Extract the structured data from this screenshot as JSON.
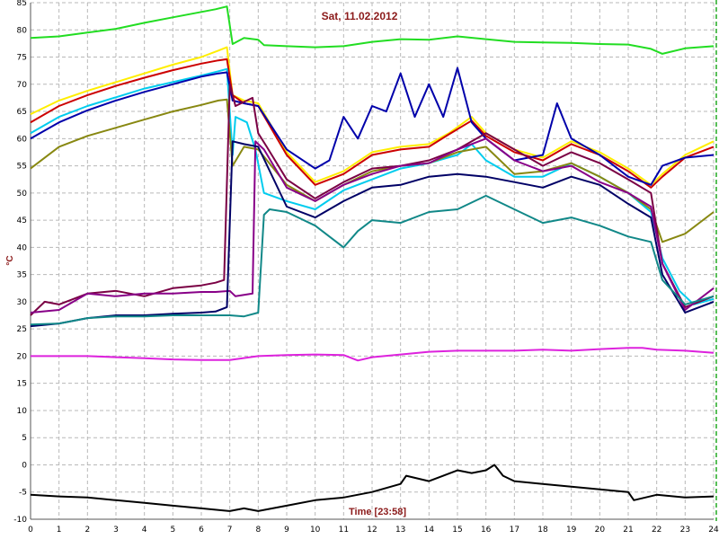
{
  "chart_data": {
    "type": "line",
    "title": "Sat, 11.02.2012",
    "xlabel": "Time [23:58]",
    "ylabel": "°C",
    "xlim": [
      0,
      24
    ],
    "ylim": [
      -10,
      85
    ],
    "xticks": [
      0,
      1,
      2,
      3,
      4,
      5,
      6,
      7,
      8,
      9,
      10,
      11,
      12,
      13,
      14,
      15,
      16,
      17,
      18,
      19,
      20,
      21,
      22,
      23,
      24
    ],
    "yticks": [
      -10,
      -5,
      0,
      5,
      10,
      15,
      20,
      25,
      30,
      35,
      40,
      45,
      50,
      55,
      60,
      65,
      70,
      75,
      80,
      85
    ],
    "grid": true,
    "series": [
      {
        "color": "#22dd22",
        "x": [
          0,
          1,
          2,
          3,
          4,
          5,
          6,
          6.5,
          6.9,
          7.1,
          7.5,
          8,
          8.2,
          9,
          10,
          11,
          12,
          13,
          14,
          15,
          16,
          17,
          18,
          19,
          20,
          21,
          21.8,
          22.2,
          23,
          24
        ],
        "y": [
          78.5,
          78.8,
          79.5,
          80.2,
          81.3,
          82.3,
          83.3,
          83.8,
          84.3,
          77.4,
          78.5,
          78.2,
          77.2,
          77.0,
          76.8,
          77.0,
          77.8,
          78.3,
          78.2,
          78.8,
          78.3,
          77.8,
          77.7,
          77.6,
          77.4,
          77.3,
          76.5,
          75.6,
          76.6,
          77.0
        ]
      },
      {
        "color": "#ffee00",
        "x": [
          0,
          1,
          2,
          3,
          4,
          5,
          6,
          6.6,
          6.9,
          7.1,
          7.5,
          8,
          9,
          10,
          11,
          12,
          13,
          14,
          14.7,
          15.5,
          16,
          17,
          18,
          19,
          20,
          21,
          21.8,
          22.2,
          23,
          24
        ],
        "y": [
          64.5,
          67.0,
          68.8,
          70.4,
          72.0,
          73.6,
          75.0,
          76.2,
          76.8,
          68.0,
          67.0,
          66.5,
          57.5,
          52.0,
          54.0,
          57.5,
          58.5,
          59.0,
          61.0,
          64.0,
          61.0,
          58.0,
          56.5,
          59.5,
          57.5,
          54.5,
          51.5,
          53.5,
          57.0,
          59.5
        ]
      },
      {
        "color": "#cc0000",
        "x": [
          0,
          1,
          2,
          3,
          4,
          5,
          6,
          6.6,
          6.9,
          7.1,
          7.5,
          8,
          9,
          10,
          11,
          12,
          13,
          14,
          14.7,
          15.5,
          16,
          17,
          18,
          19,
          20,
          21,
          21.8,
          22.2,
          23,
          24
        ],
        "y": [
          63.0,
          66.0,
          68.0,
          69.7,
          71.2,
          72.6,
          73.8,
          74.4,
          74.6,
          68.0,
          66.5,
          66.0,
          57.0,
          51.5,
          53.5,
          57.0,
          58.0,
          58.5,
          60.8,
          63.3,
          60.5,
          57.5,
          56.0,
          59.0,
          57.0,
          54.0,
          51.0,
          53.0,
          56.5,
          58.5
        ]
      },
      {
        "color": "#00ccee",
        "x": [
          0,
          1,
          2,
          3,
          4,
          5,
          6,
          6.6,
          6.9,
          7.1,
          7.2,
          7.6,
          7.9,
          8.2,
          9,
          10,
          11,
          12,
          13,
          14,
          15,
          15.5,
          16,
          17,
          18,
          19,
          20,
          21,
          21.8,
          22.2,
          22.8,
          23.3,
          24
        ],
        "y": [
          61.0,
          64.0,
          66.0,
          67.6,
          69.2,
          70.4,
          71.6,
          72.4,
          72.8,
          57.0,
          64.0,
          63.0,
          58.0,
          50.0,
          48.5,
          47.0,
          50.5,
          52.5,
          54.5,
          55.5,
          57.0,
          59.0,
          56.0,
          53.0,
          53.0,
          55.5,
          53.0,
          50.0,
          46.5,
          38.0,
          32.0,
          29.5,
          30.5
        ]
      },
      {
        "color": "#0000aa",
        "x": [
          0,
          1,
          2,
          3,
          4,
          5,
          6,
          6.6,
          6.9,
          7.1,
          7.5,
          8,
          9,
          10,
          10.5,
          11,
          11.5,
          12,
          12.5,
          13,
          13.5,
          14,
          14.5,
          15,
          15.5,
          16,
          16.5,
          17,
          18,
          18.5,
          19,
          20,
          21,
          21.8,
          22.2,
          23,
          24
        ],
        "y": [
          60.0,
          63.0,
          65.2,
          67.0,
          68.6,
          70.0,
          71.4,
          72.0,
          72.2,
          67.0,
          66.5,
          66.0,
          58.0,
          54.5,
          56.0,
          64.0,
          60.0,
          66.0,
          65.0,
          72.0,
          64.0,
          70.0,
          64.0,
          73.0,
          63.0,
          60.0,
          58.0,
          56.0,
          57.0,
          66.5,
          60.0,
          57.0,
          53.0,
          51.5,
          55.0,
          56.5,
          57.0
        ]
      },
      {
        "color": "#888811",
        "x": [
          0,
          1,
          2,
          3,
          4,
          5,
          6,
          6.6,
          6.9,
          7.1,
          7.5,
          8,
          9,
          10,
          11,
          12,
          13,
          14,
          15,
          16,
          17,
          18,
          19,
          20,
          21,
          21.8,
          22.2,
          23,
          24
        ],
        "y": [
          54.5,
          58.5,
          60.5,
          62.0,
          63.5,
          65.0,
          66.2,
          67.0,
          67.2,
          55.0,
          58.5,
          58.0,
          51.5,
          48.5,
          51.5,
          54.0,
          55.0,
          55.5,
          57.5,
          58.5,
          53.5,
          54.0,
          55.5,
          53.0,
          50.0,
          47.0,
          41.0,
          42.5,
          46.5
        ]
      },
      {
        "color": "#7a0044",
        "x": [
          0,
          0.5,
          1,
          2,
          3,
          4,
          5,
          6,
          6.5,
          6.8,
          7.0,
          7.2,
          7.8,
          8.0,
          8.3,
          9,
          10,
          11,
          12,
          13,
          14,
          15,
          16,
          17,
          18,
          19,
          20,
          21,
          21.8,
          22.2,
          23,
          24
        ],
        "y": [
          27.5,
          30.0,
          29.5,
          31.5,
          32.0,
          31.0,
          32.5,
          33.0,
          33.5,
          34.0,
          70.0,
          66.0,
          67.5,
          61.0,
          58.5,
          52.5,
          49.0,
          52.0,
          54.5,
          55.0,
          56.0,
          58.0,
          61.0,
          58.0,
          55.0,
          57.5,
          55.5,
          52.5,
          50.0,
          37.0,
          29.0,
          31.0
        ]
      },
      {
        "color": "#880088",
        "x": [
          0,
          1,
          2,
          3,
          4,
          5,
          6,
          6.5,
          7.0,
          7.2,
          7.8,
          7.9,
          8.0,
          8.2,
          9,
          10,
          11,
          12,
          13,
          14,
          15,
          16,
          17,
          18,
          19,
          20,
          21,
          21.8,
          22.2,
          23,
          24
        ],
        "y": [
          28.0,
          28.5,
          31.5,
          31.0,
          31.5,
          31.5,
          31.8,
          31.8,
          32.0,
          31.0,
          31.5,
          59.5,
          59.0,
          58.0,
          51.0,
          48.5,
          51.5,
          53.5,
          55.0,
          55.5,
          58.0,
          60.0,
          56.0,
          54.0,
          55.0,
          52.0,
          50.0,
          47.5,
          37.0,
          28.5,
          32.5
        ]
      },
      {
        "color": "#000066",
        "x": [
          0,
          1,
          2,
          3,
          4,
          5,
          6,
          6.5,
          6.9,
          7.1,
          7.5,
          8,
          9,
          10,
          11,
          12,
          13,
          14,
          15,
          16,
          17,
          18,
          19,
          20,
          21,
          21.8,
          22.2,
          23,
          24
        ],
        "y": [
          25.5,
          26.0,
          27.0,
          27.5,
          27.5,
          27.8,
          28.0,
          28.2,
          29.0,
          59.5,
          59.0,
          58.5,
          47.5,
          45.5,
          48.5,
          51.0,
          51.5,
          53.0,
          53.5,
          53.0,
          52.0,
          51.0,
          53.0,
          51.5,
          48.0,
          45.5,
          35.0,
          28.0,
          30.0
        ]
      },
      {
        "color": "#118888",
        "x": [
          0,
          1,
          2,
          3,
          4,
          5,
          6,
          6.5,
          7.0,
          7.5,
          8.0,
          8.2,
          8.4,
          9,
          10,
          11,
          11.5,
          12,
          13,
          14,
          15,
          16,
          17,
          18,
          19,
          20,
          21,
          21.8,
          22.2,
          23,
          24
        ],
        "y": [
          25.8,
          26.0,
          27.0,
          27.3,
          27.3,
          27.5,
          27.5,
          27.5,
          27.5,
          27.3,
          28.0,
          46.0,
          47.0,
          46.5,
          44.0,
          40.0,
          43.0,
          45.0,
          44.5,
          46.5,
          47.0,
          49.5,
          47.0,
          44.5,
          45.5,
          44.0,
          42.0,
          41.0,
          34.0,
          29.5,
          31.0
        ]
      },
      {
        "color": "#dd22dd",
        "x": [
          0,
          1,
          2,
          3,
          4,
          5,
          6,
          7,
          8,
          9,
          10,
          11,
          11.5,
          12,
          13,
          14,
          15,
          16,
          17,
          18,
          19,
          20,
          21,
          21.5,
          22,
          23,
          24
        ],
        "y": [
          20.0,
          20.0,
          20.0,
          19.8,
          19.6,
          19.4,
          19.3,
          19.3,
          20.0,
          20.2,
          20.3,
          20.2,
          19.2,
          19.8,
          20.3,
          20.8,
          21.0,
          21.0,
          21.0,
          21.2,
          21.0,
          21.3,
          21.5,
          21.5,
          21.2,
          21.0,
          20.6
        ]
      },
      {
        "color": "#000000",
        "x": [
          0,
          1,
          2,
          3,
          4,
          5,
          6,
          7,
          7.5,
          8,
          9,
          10,
          11,
          12,
          13,
          13.2,
          14,
          14.5,
          15,
          15.5,
          16,
          16.3,
          16.6,
          17,
          18,
          19,
          20,
          21,
          21.2,
          22,
          23,
          24
        ],
        "y": [
          -5.5,
          -5.8,
          -6.0,
          -6.5,
          -7.0,
          -7.5,
          -8.0,
          -8.5,
          -8.0,
          -8.5,
          -7.5,
          -6.5,
          -6.0,
          -5.0,
          -3.5,
          -2.0,
          -3.0,
          -2.0,
          -1.0,
          -1.5,
          -1.0,
          0.0,
          -2.0,
          -3.0,
          -3.5,
          -4.0,
          -4.5,
          -5.0,
          -6.5,
          -5.5,
          -6.0,
          -5.8
        ]
      }
    ]
  }
}
